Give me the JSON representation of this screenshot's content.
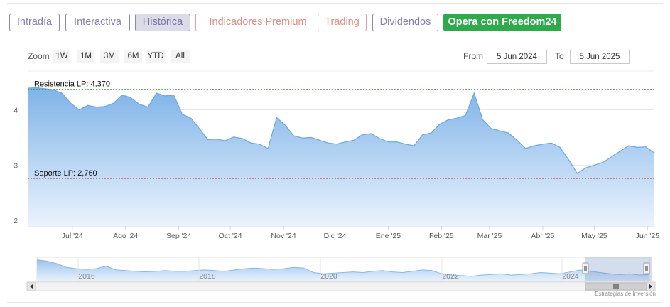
{
  "tabs": [
    {
      "label": "Intradía",
      "style": "normal"
    },
    {
      "label": "Interactiva",
      "style": "normal"
    },
    {
      "label": "Histórica",
      "style": "active"
    },
    {
      "label": "Indicadores Premium",
      "style": "red"
    },
    {
      "label": "Trading",
      "style": "red"
    },
    {
      "label": "Dividendos",
      "style": "normal"
    },
    {
      "label": "Opera con Freedom24",
      "style": "green"
    }
  ],
  "zoom": {
    "label": "Zoom",
    "buttons": [
      "1W",
      "1M",
      "3M",
      "6M",
      "YTD",
      "All"
    ]
  },
  "range": {
    "from_label": "From",
    "from_value": "5 Jun 2024",
    "to_label": "To",
    "to_value": "5 Jun 2025"
  },
  "credit": "Estrategias de Inversión",
  "colors": {
    "line": "#6aa6e0",
    "fill_top": "#7fb3e8",
    "fill_bottom": "#eaf3fd",
    "resistance": "#3a9a3a",
    "support": "#cc2222"
  },
  "chart_data": {
    "type": "area",
    "ylim": [
      1.9,
      4.7
    ],
    "y_ticks": [
      2,
      3,
      4
    ],
    "x_range": [
      "2024-06-05",
      "2025-06-05"
    ],
    "x_tick_labels": [
      "Jul '24",
      "Ago '24",
      "Sep '24",
      "Oct '24",
      "Nov '24",
      "Dic '24",
      "Ene '25",
      "Feb '25",
      "Mar '25",
      "Abr '25",
      "May '25",
      "Jun '25"
    ],
    "series": [
      {
        "x": [
          "2024-06-05",
          "2024-06-10",
          "2024-06-15",
          "2024-06-20",
          "2024-06-25",
          "2024-06-30",
          "2024-07-05",
          "2024-07-10",
          "2024-07-15",
          "2024-07-20",
          "2024-07-25",
          "2024-07-30",
          "2024-08-04",
          "2024-08-09",
          "2024-08-14",
          "2024-08-19",
          "2024-08-24",
          "2024-08-29",
          "2024-09-03",
          "2024-09-08",
          "2024-09-13",
          "2024-09-18",
          "2024-09-23",
          "2024-09-28",
          "2024-10-03",
          "2024-10-08",
          "2024-10-13",
          "2024-10-18",
          "2024-10-23",
          "2024-10-28",
          "2024-11-02",
          "2024-11-07",
          "2024-11-12",
          "2024-11-17",
          "2024-11-22",
          "2024-11-27",
          "2024-12-02",
          "2024-12-07",
          "2024-12-12",
          "2024-12-17",
          "2024-12-22",
          "2024-12-27",
          "2025-01-01",
          "2025-01-06",
          "2025-01-11",
          "2025-01-16",
          "2025-01-21",
          "2025-01-26",
          "2025-01-31",
          "2025-02-05",
          "2025-02-10",
          "2025-02-15",
          "2025-02-20",
          "2025-02-25",
          "2025-03-02",
          "2025-03-07",
          "2025-03-12",
          "2025-03-17",
          "2025-03-22",
          "2025-03-27",
          "2025-04-01",
          "2025-04-06",
          "2025-04-11",
          "2025-04-16",
          "2025-04-21",
          "2025-04-26",
          "2025-05-01",
          "2025-05-06",
          "2025-05-11",
          "2025-05-16",
          "2025-05-21",
          "2025-05-26",
          "2025-05-31",
          "2025-06-05"
        ],
        "values": [
          4.39,
          4.4,
          4.38,
          4.36,
          4.3,
          4.12,
          4.0,
          4.08,
          4.05,
          4.06,
          4.12,
          4.27,
          4.22,
          4.1,
          4.05,
          4.3,
          4.25,
          4.27,
          3.92,
          3.85,
          3.66,
          3.46,
          3.47,
          3.44,
          3.51,
          3.48,
          3.4,
          3.38,
          3.3,
          3.86,
          3.72,
          3.53,
          3.49,
          3.5,
          3.45,
          3.4,
          3.38,
          3.42,
          3.45,
          3.55,
          3.57,
          3.48,
          3.42,
          3.42,
          3.38,
          3.35,
          3.55,
          3.58,
          3.74,
          3.82,
          3.85,
          3.9,
          4.3,
          3.82,
          3.66,
          3.62,
          3.58,
          3.45,
          3.3,
          3.35,
          3.38,
          3.4,
          3.32,
          3.1,
          2.85,
          2.95,
          3.0,
          3.05,
          3.15,
          3.25,
          3.35,
          3.32,
          3.33,
          3.22
        ]
      }
    ],
    "annotations": [
      {
        "label": "Resistencia LP: 4,370",
        "y": 4.37
      },
      {
        "label": "Soporte LP: 2,760",
        "y": 2.76
      }
    ],
    "navigator": {
      "x_tick_labels": [
        "2016",
        "2018",
        "2020",
        "2022",
        "2024"
      ],
      "values": [
        4.7,
        4.6,
        4.4,
        4.1,
        4.0,
        3.95,
        4.0,
        4.2,
        3.9,
        3.85,
        3.8,
        3.75,
        3.8,
        3.85,
        3.8,
        3.8,
        3.85,
        3.9,
        3.85,
        3.8,
        3.9,
        4.0,
        4.05,
        4.0,
        3.95,
        4.0,
        4.1,
        4.05,
        3.7,
        3.6,
        3.65,
        3.7,
        3.75,
        3.7,
        3.8,
        3.85,
        3.75,
        3.7,
        3.8,
        3.9,
        3.85,
        3.6,
        3.5,
        3.45,
        3.4,
        3.5,
        3.55,
        3.6,
        3.5,
        3.55,
        3.6,
        3.7,
        3.65,
        3.6,
        3.75,
        3.9,
        3.8,
        3.7,
        3.6,
        3.55,
        3.6,
        3.5,
        3.55
      ]
    }
  }
}
